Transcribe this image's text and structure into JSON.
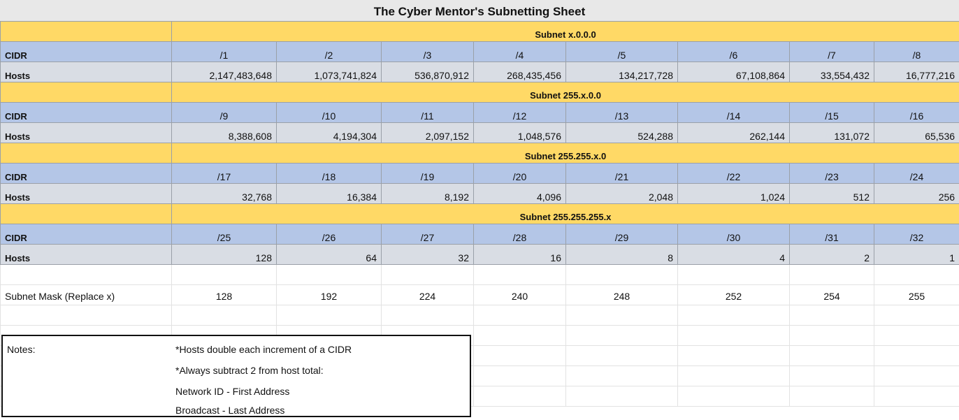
{
  "title": "The Cyber Mentor's Subnetting Sheet",
  "labels": {
    "cidr": "CIDR",
    "hosts": "Hosts",
    "mask": "Subnet Mask (Replace x)"
  },
  "sections": [
    {
      "header": "Subnet x.0.0.0",
      "cidrs": [
        "/1",
        "/2",
        "/3",
        "/4",
        "/5",
        "/6",
        "/7",
        "/8"
      ],
      "hosts": [
        "2,147,483,648",
        "1,073,741,824",
        "536,870,912",
        "268,435,456",
        "134,217,728",
        "67,108,864",
        "33,554,432",
        "16,777,216"
      ]
    },
    {
      "header": "Subnet 255.x.0.0",
      "cidrs": [
        "/9",
        "/10",
        "/11",
        "/12",
        "/13",
        "/14",
        "/15",
        "/16"
      ],
      "hosts": [
        "8,388,608",
        "4,194,304",
        "2,097,152",
        "1,048,576",
        "524,288",
        "262,144",
        "131,072",
        "65,536"
      ]
    },
    {
      "header": "Subnet 255.255.x.0",
      "cidrs": [
        "/17",
        "/18",
        "/19",
        "/20",
        "/21",
        "/22",
        "/23",
        "/24"
      ],
      "hosts": [
        "32,768",
        "16,384",
        "8,192",
        "4,096",
        "2,048",
        "1,024",
        "512",
        "256"
      ]
    },
    {
      "header": "Subnet 255.255.255.x",
      "cidrs": [
        "/25",
        "/26",
        "/27",
        "/28",
        "/29",
        "/30",
        "/31",
        "/32"
      ],
      "hosts": [
        "128",
        "64",
        "32",
        "16",
        "8",
        "4",
        "2",
        "1"
      ]
    }
  ],
  "masks": [
    "128",
    "192",
    "224",
    "240",
    "248",
    "252",
    "254",
    "255"
  ],
  "notes": {
    "label": "Notes:",
    "lines": [
      "*Hosts double each increment of a CIDR",
      "*Always subtract 2 from host total:",
      "Network ID - First Address",
      "Broadcast - Last Address"
    ]
  }
}
